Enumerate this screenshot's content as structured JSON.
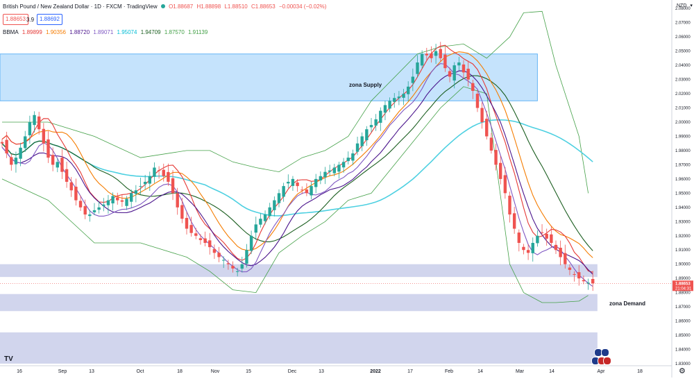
{
  "header": {
    "symbol_title": "British Pound / New Zealand Dollar · 1D · FXCM · TradingView",
    "ohlc": {
      "o": "O1.88687",
      "h": "H1.88898",
      "l": "L1.88510",
      "c": "C1.88653",
      "chg": "−0.00034 (−0.02%)"
    },
    "sell_price": "1.88653",
    "spread": "3.9",
    "buy_price": "1.88692",
    "bbma": {
      "label": "BBMA",
      "values": [
        "1.89899",
        "1.90356",
        "1.88720",
        "1.89071",
        "1.95074",
        "1.94709",
        "1.87570",
        "1.91139"
      ],
      "colors": [
        "#e53935",
        "#f57c00",
        "#4a148c",
        "#7e57c2",
        "#00bcd4",
        "#1b5e20",
        "#43a047",
        "#43a047"
      ]
    },
    "currency": "NZD"
  },
  "colors": {
    "up": "#26a69a",
    "down": "#ef5350",
    "zone": "#bbdefb",
    "band": "#43a047",
    "ema50": "#4dd0e1",
    "mid": "#1b5e20",
    "ma5hi": "#e53935",
    "ma10hi": "#f57c00",
    "ma5lo": "#7e57c2",
    "ma10lo": "#4a148c",
    "price_tag": "#ef5350"
  },
  "chart_data": {
    "type": "candlestick",
    "title": "British Pound / New Zealand Dollar · 1D · FXCM · TradingView",
    "ylim": [
      1.83,
      2.085
    ],
    "y_ticks": [
      "2.08000",
      "2.07000",
      "2.06000",
      "2.05000",
      "2.04000",
      "2.03000",
      "2.02000",
      "2.01000",
      "2.00000",
      "1.99000",
      "1.98000",
      "1.97000",
      "1.96000",
      "1.95000",
      "1.94000",
      "1.93000",
      "1.92000",
      "1.91000",
      "1.90000",
      "1.89000",
      "1.88000",
      "1.87000",
      "1.86000",
      "1.85000",
      "1.84000",
      "1.83000"
    ],
    "x_labels": [
      "16",
      "Sep",
      "13",
      "Oct",
      "18",
      "Nov",
      "15",
      "Dec",
      "13",
      "2022",
      "17",
      "Feb",
      "14",
      "Mar",
      "14",
      "Apr",
      "18"
    ],
    "close_series": [
      1.985,
      1.978,
      1.97,
      1.975,
      1.982,
      1.99,
      2.0,
      2.005,
      1.995,
      1.985,
      1.975,
      1.97,
      1.972,
      1.965,
      1.958,
      1.952,
      1.945,
      1.94,
      1.935,
      1.935,
      1.938,
      1.94,
      1.942,
      1.945,
      1.948,
      1.945,
      1.944,
      1.946,
      1.95,
      1.952,
      1.955,
      1.958,
      1.962,
      1.968,
      1.966,
      1.962,
      1.958,
      1.95,
      1.94,
      1.932,
      1.925,
      1.922,
      1.92,
      1.917,
      1.915,
      1.912,
      1.908,
      1.905,
      1.903,
      1.9,
      1.897,
      1.895,
      1.9,
      1.91,
      1.92,
      1.928,
      1.932,
      1.935,
      1.94,
      1.945,
      1.95,
      1.955,
      1.958,
      1.96,
      1.955,
      1.952,
      1.95,
      1.955,
      1.96,
      1.962,
      1.965,
      1.966,
      1.968,
      1.97,
      1.972,
      1.975,
      1.978,
      1.985,
      1.99,
      1.995,
      1.998,
      2.002,
      2.008,
      2.012,
      2.015,
      2.017,
      2.018,
      2.02,
      2.025,
      2.032,
      2.042,
      2.048,
      2.047,
      2.045,
      2.05,
      2.045,
      2.038,
      2.032,
      2.04,
      2.042,
      2.035,
      2.03,
      2.022,
      2.01,
      2.0,
      1.99,
      1.98,
      1.97,
      1.96,
      1.95,
      1.935,
      1.925,
      1.915,
      1.91,
      1.908,
      1.915,
      1.92,
      1.922,
      1.918,
      1.915,
      1.91,
      1.905,
      1.9,
      1.896,
      1.893,
      1.89,
      1.888,
      1.887,
      1.8865
    ],
    "candle_count": 129,
    "bands": {
      "upper_x_index": [
        0,
        10,
        20,
        30,
        40,
        45,
        50,
        55,
        60,
        65,
        70,
        75,
        80,
        90,
        95,
        100,
        105,
        110,
        113,
        117,
        120,
        125,
        127
      ],
      "upper": [
        2.0,
        2.0,
        1.99,
        1.975,
        1.98,
        1.98,
        1.972,
        1.968,
        1.965,
        1.975,
        1.98,
        1.99,
        2.015,
        2.048,
        2.053,
        2.055,
        2.045,
        2.06,
        2.077,
        2.078,
        2.04,
        1.99,
        1.95
      ],
      "lower": [
        1.96,
        1.945,
        1.915,
        1.915,
        1.905,
        1.895,
        1.882,
        1.88,
        1.908,
        1.92,
        1.93,
        1.945,
        1.95,
        1.99,
        2.01,
        2.025,
        2.02,
        1.9,
        1.88,
        1.873,
        1.873,
        1.874,
        1.878
      ]
    },
    "zones": [
      {
        "label": "zona Supply",
        "y_top": 2.048,
        "y_bottom": 2.015,
        "x_start_index": 0,
        "x_end_index": 116
      },
      {
        "label": "",
        "y_top": 1.9,
        "y_bottom": 1.891,
        "x_start_index": 0,
        "x_end_index": 129
      },
      {
        "label": "zona Demand",
        "y_top": 1.879,
        "y_bottom": 1.867,
        "x_start_index": 0,
        "x_end_index": 129
      },
      {
        "label": "",
        "y_top": 1.852,
        "y_bottom": 1.83,
        "x_start_index": 0,
        "x_end_index": 129
      }
    ],
    "last_price": "1.88653",
    "countdown": "21:04:31"
  }
}
